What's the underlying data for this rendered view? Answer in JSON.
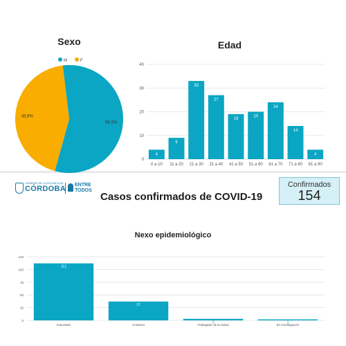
{
  "colors": {
    "teal": "#0aa6c3",
    "orange": "#f8ad00",
    "m_dot": "#0aa6c3",
    "f_dot": "#f8ad00"
  },
  "header": {
    "logo_small": "GOBIERNO DE LA PROVINCIA DE",
    "logo_main": "CÓRDOBA",
    "logo_entre": "ENTRE",
    "logo_todos": "TODOS",
    "title": "Casos confirmados de COVID-19"
  },
  "confirmados": {
    "label": "Confirmados",
    "value": "154"
  },
  "chart_data": [
    {
      "type": "pie",
      "title": "Sexo",
      "legend": [
        "M",
        "F"
      ],
      "slices": [
        {
          "name": "M",
          "value": 56.2,
          "label": "56,2%"
        },
        {
          "name": "F",
          "value": 43.8,
          "label": "43,8%"
        }
      ]
    },
    {
      "type": "bar",
      "title": "Edad",
      "categories": [
        "0 a 10",
        "11 a 20",
        "21 a 30",
        "31 a 40",
        "41 a 50",
        "51 a 60",
        "61 a 70",
        "71 a 80",
        "81 a 90"
      ],
      "values": [
        4,
        9,
        33,
        27,
        19,
        20,
        24,
        14,
        4
      ],
      "ylim": [
        0,
        40
      ],
      "yticks": [
        0,
        10,
        20,
        30,
        40
      ],
      "grid": true
    },
    {
      "type": "bar",
      "title": "Nexo epidemiológico",
      "categories": [
        "Importado",
        "Contacto",
        "Trabajador de la Salud",
        "En investigación"
      ],
      "values": [
        112,
        37,
        3,
        2
      ],
      "ylim": [
        0,
        125
      ],
      "yticks": [
        0,
        25,
        50,
        75,
        100,
        125
      ],
      "grid": true
    }
  ]
}
